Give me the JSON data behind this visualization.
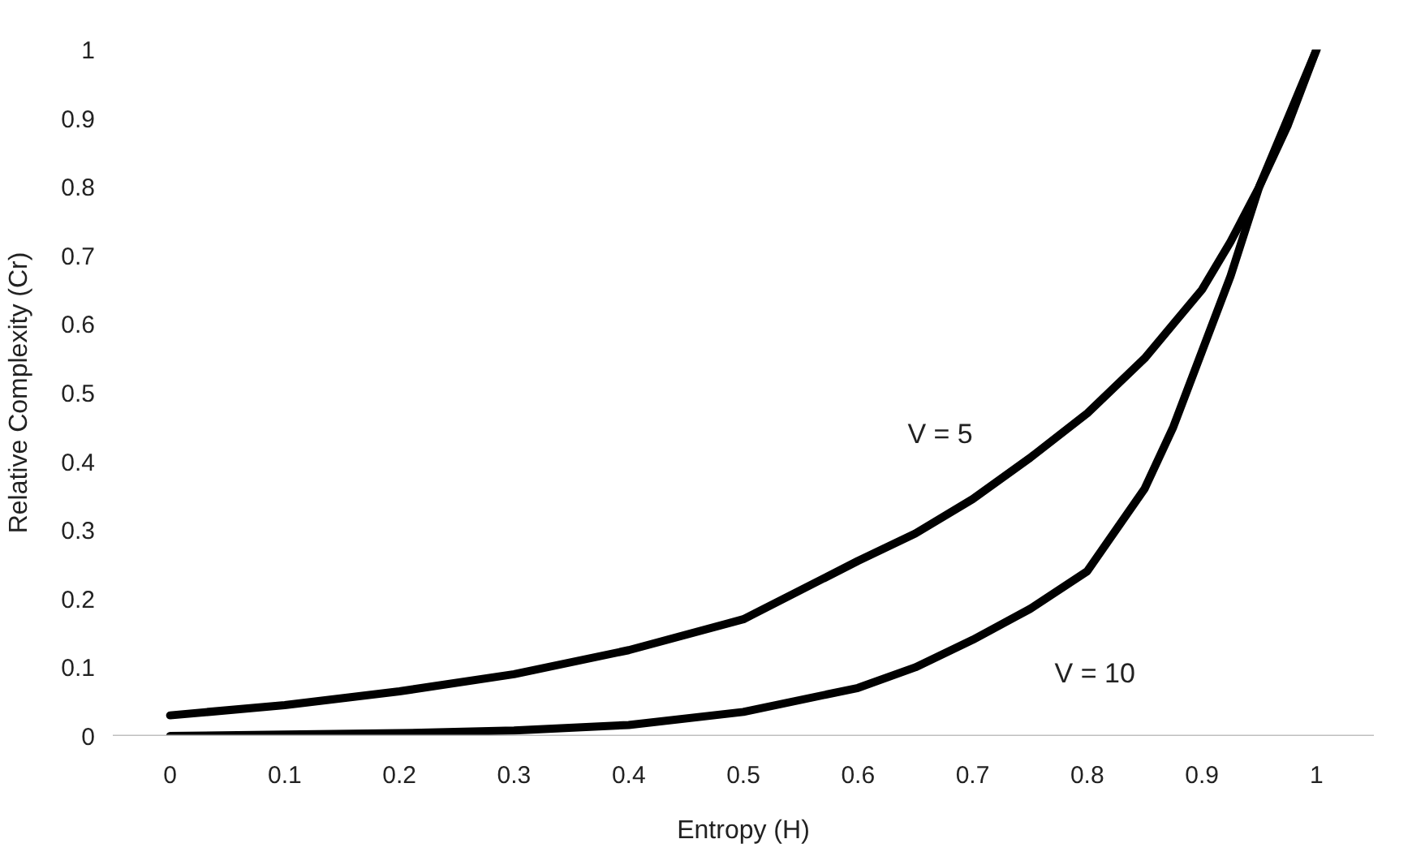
{
  "chart_data": {
    "type": "line",
    "xlabel": "Entropy (H)",
    "ylabel": "Relative Complexity (Cr)",
    "x": [
      0,
      0.1,
      0.2,
      0.3,
      0.4,
      0.5,
      0.6,
      0.65,
      0.7,
      0.75,
      0.8,
      0.85,
      0.875,
      0.9,
      0.925,
      0.95,
      0.975,
      1
    ],
    "series": [
      {
        "name": "V = 5",
        "color": "#000000",
        "values": [
          0.03,
          0.045,
          0.065,
          0.09,
          0.125,
          0.17,
          0.255,
          0.295,
          0.345,
          0.405,
          0.47,
          0.55,
          0.6,
          0.65,
          0.72,
          0.8,
          0.89,
          1
        ]
      },
      {
        "name": "V = 10",
        "color": "#000000",
        "values": [
          0,
          0.002,
          0.004,
          0.008,
          0.016,
          0.035,
          0.07,
          0.1,
          0.14,
          0.185,
          0.24,
          0.36,
          0.45,
          0.56,
          0.67,
          0.8,
          0.9,
          1
        ]
      }
    ],
    "xlim": [
      -0.05,
      1.05
    ],
    "ylim": [
      0,
      1
    ],
    "xticks": [
      0,
      0.1,
      0.2,
      0.3,
      0.4,
      0.5,
      0.6,
      0.7,
      0.8,
      0.9,
      1
    ],
    "yticks": [
      0,
      0.1,
      0.2,
      0.3,
      0.4,
      0.5,
      0.6,
      0.7,
      0.8,
      0.9,
      1
    ],
    "grid": false,
    "marker": "none",
    "line_style": "solid"
  }
}
